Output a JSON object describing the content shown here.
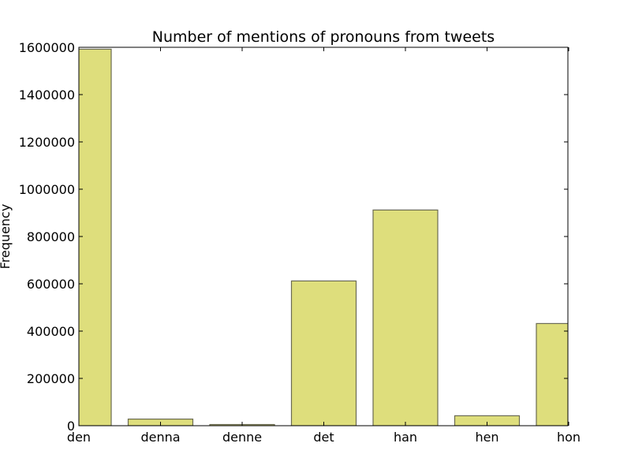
{
  "chart_data": {
    "type": "bar",
    "title": "Number of mentions of pronouns from tweets",
    "xlabel": "",
    "ylabel": "Frequency",
    "categories": [
      "den",
      "denna",
      "denne",
      "det",
      "han",
      "hen",
      "hon"
    ],
    "values": [
      1592000,
      28000,
      5000,
      612000,
      912000,
      42000,
      432000
    ],
    "ylim": [
      0,
      1600000
    ],
    "yticks": [
      0,
      200000,
      400000,
      600000,
      800000,
      1000000,
      1200000,
      1400000,
      1600000
    ],
    "ytick_labels": [
      "0",
      "200000",
      "400000",
      "600000",
      "800000",
      "1000000",
      "1200000",
      "1400000",
      "1600000"
    ],
    "grid": false,
    "legend": "none",
    "bar_color": "#dede7c",
    "bar_edge_color": "#6b6b52"
  }
}
